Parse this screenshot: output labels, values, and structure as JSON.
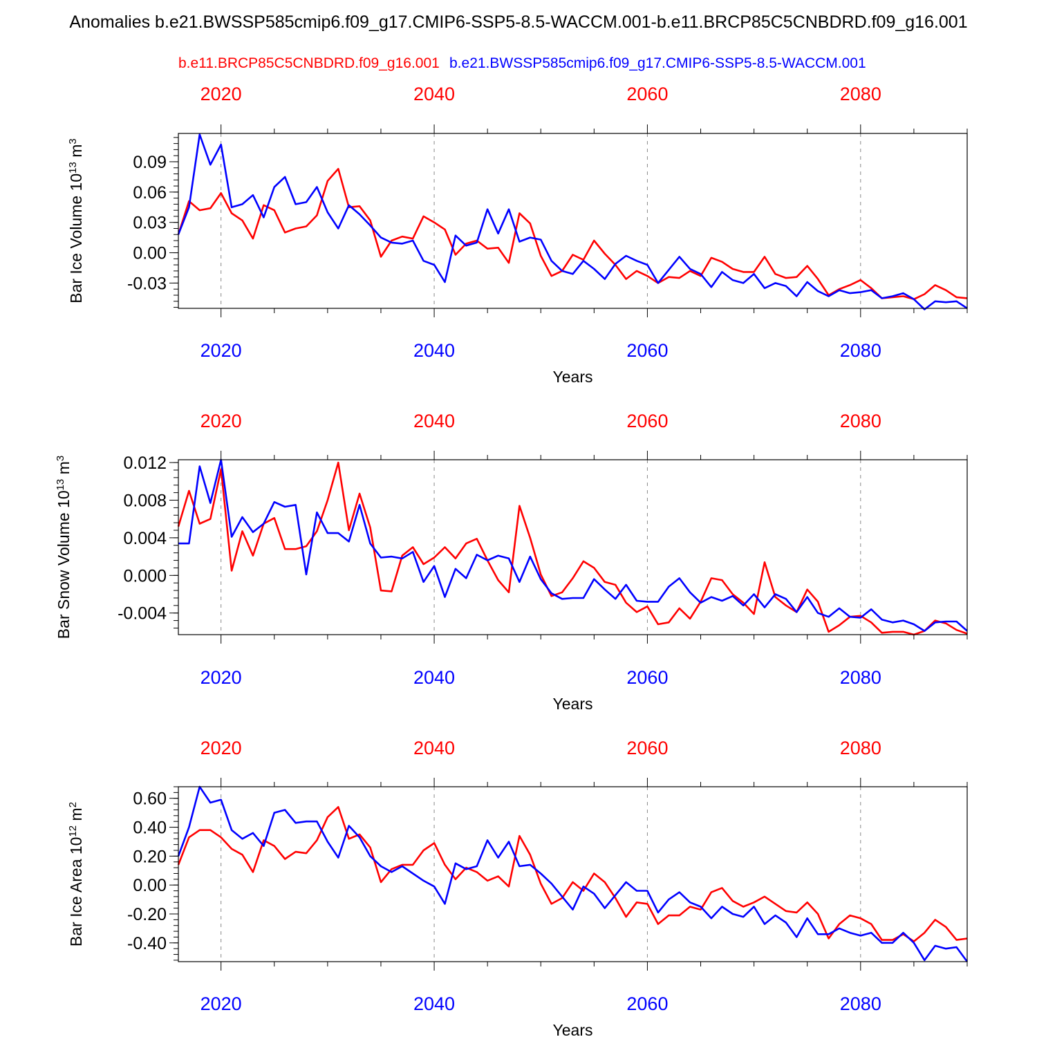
{
  "title": "Anomalies b.e21.BWSSP585cmip6.f09_g17.CMIP6-SSP5-8.5-WACCM.001-b.e11.BRCP85C5CNBDRD.f09_g16.001",
  "legend": {
    "red_label": "b.e11.BRCP85C5CNBDRD.f09_g16.001",
    "blue_label": "b.e21.BWSSP585cmip6.f09_g17.CMIP6-SSP5-8.5-WACCM.001"
  },
  "colors": {
    "red": "#ff0000",
    "blue": "#0000ff",
    "axis": "#000000",
    "grid": "#888888"
  },
  "chart_data": [
    {
      "type": "line",
      "ylabel_main": "Bar Ice Volume 10",
      "ylabel_exp": "13",
      "ylabel_unit": " m",
      "ylabel_unit_exp": "3",
      "xlabel": "Years",
      "xlim": [
        2016,
        2090
      ],
      "ylim": [
        -0.055,
        0.118
      ],
      "xticks": [
        2020,
        2040,
        2060,
        2080
      ],
      "xtick_labels": [
        "2020",
        "2040",
        "2060",
        "2080"
      ],
      "yticks": [
        0.09,
        0.06,
        0.03,
        0.0,
        -0.03
      ],
      "ytick_labels": [
        "0.09",
        "0.06",
        "0.03",
        "0.00",
        "-0.03"
      ],
      "yminor": 0.006,
      "grid": "vertical dashed at major x ticks",
      "series": [
        {
          "name": "b.e11.BRCP85C5CNBDRD.f09_g16.001",
          "color": "red",
          "start": 2016,
          "values": [
            0.018,
            0.051,
            0.042,
            0.044,
            0.059,
            0.039,
            0.032,
            0.014,
            0.047,
            0.042,
            0.02,
            0.024,
            0.026,
            0.037,
            0.071,
            0.083,
            0.045,
            0.046,
            0.032,
            -0.004,
            0.012,
            0.016,
            0.014,
            0.036,
            0.03,
            0.023,
            -0.002,
            0.009,
            0.012,
            0.004,
            0.005,
            -0.01,
            0.039,
            0.029,
            -0.003,
            -0.023,
            -0.018,
            -0.002,
            -0.007,
            0.012,
            -0.001,
            -0.012,
            -0.026,
            -0.018,
            -0.023,
            -0.03,
            -0.024,
            -0.025,
            -0.018,
            -0.023,
            -0.005,
            -0.009,
            -0.016,
            -0.019,
            -0.019,
            -0.004,
            -0.021,
            -0.025,
            -0.024,
            -0.013,
            -0.026,
            -0.042,
            -0.036,
            -0.032,
            -0.027,
            -0.035,
            -0.045,
            -0.044,
            -0.043,
            -0.046,
            -0.041,
            -0.032,
            -0.037,
            -0.044,
            -0.045
          ]
        },
        {
          "name": "b.e21.BWSSP585cmip6.f09_g17.CMIP6-SSP5-8.5-WACCM.001",
          "color": "blue",
          "start": 2016,
          "values": [
            0.018,
            0.045,
            0.117,
            0.087,
            0.107,
            0.045,
            0.048,
            0.057,
            0.035,
            0.065,
            0.075,
            0.048,
            0.05,
            0.065,
            0.04,
            0.024,
            0.047,
            0.038,
            0.027,
            0.015,
            0.01,
            0.009,
            0.012,
            -0.008,
            -0.012,
            -0.029,
            0.017,
            0.007,
            0.01,
            0.043,
            0.019,
            0.043,
            0.011,
            0.015,
            0.013,
            -0.008,
            -0.018,
            -0.021,
            -0.008,
            -0.016,
            -0.026,
            -0.011,
            -0.003,
            -0.008,
            -0.012,
            -0.03,
            -0.017,
            -0.004,
            -0.016,
            -0.021,
            -0.034,
            -0.019,
            -0.027,
            -0.03,
            -0.021,
            -0.035,
            -0.03,
            -0.033,
            -0.043,
            -0.029,
            -0.038,
            -0.043,
            -0.037,
            -0.04,
            -0.039,
            -0.037,
            -0.045,
            -0.043,
            -0.04,
            -0.046,
            -0.056,
            -0.048,
            -0.049,
            -0.048,
            -0.055
          ]
        }
      ]
    },
    {
      "type": "line",
      "ylabel_main": "Bar Snow Volume 10",
      "ylabel_exp": "13",
      "ylabel_unit": " m",
      "ylabel_unit_exp": "3",
      "xlabel": "Years",
      "xlim": [
        2016,
        2090
      ],
      "ylim": [
        -0.0063,
        0.0123
      ],
      "xticks": [
        2020,
        2040,
        2060,
        2080
      ],
      "xtick_labels": [
        "2020",
        "2040",
        "2060",
        "2080"
      ],
      "yticks": [
        0.012,
        0.008,
        0.004,
        0.0,
        -0.004
      ],
      "ytick_labels": [
        "0.012",
        "0.008",
        "0.004",
        "0.000",
        "-0.004"
      ],
      "yminor": 0.0008,
      "grid": "vertical dashed at major x ticks",
      "series": [
        {
          "name": "b.e11.BRCP85C5CNBDRD.f09_g16.001",
          "color": "red",
          "start": 2016,
          "values": [
            0.0052,
            0.009,
            0.0055,
            0.006,
            0.0113,
            0.0005,
            0.0047,
            0.0021,
            0.0055,
            0.0061,
            0.0028,
            0.0028,
            0.0031,
            0.0047,
            0.008,
            0.012,
            0.0048,
            0.0087,
            0.0051,
            -0.0016,
            -0.0017,
            0.0021,
            0.003,
            0.0012,
            0.0019,
            0.003,
            0.0018,
            0.0034,
            0.0039,
            0.0016,
            -0.0005,
            -0.0018,
            0.0074,
            0.004,
            0.0001,
            -0.0022,
            -0.0018,
            -0.0003,
            0.0015,
            0.0008,
            -0.0007,
            -0.001,
            -0.0029,
            -0.0039,
            -0.0033,
            -0.0052,
            -0.005,
            -0.0035,
            -0.0046,
            -0.0028,
            -0.0003,
            -0.0005,
            -0.002,
            -0.0029,
            -0.0041,
            0.0014,
            -0.0023,
            -0.0032,
            -0.0039,
            -0.0015,
            -0.0028,
            -0.006,
            -0.0053,
            -0.0044,
            -0.0043,
            -0.005,
            -0.0061,
            -0.006,
            -0.006,
            -0.0063,
            -0.0059,
            -0.0048,
            -0.0051,
            -0.0058,
            -0.0062
          ]
        },
        {
          "name": "b.e21.BWSSP585cmip6.f09_g17.CMIP6-SSP5-8.5-WACCM.001",
          "color": "blue",
          "start": 2016,
          "values": [
            0.0034,
            0.0034,
            0.0116,
            0.0077,
            0.0123,
            0.0041,
            0.0062,
            0.0046,
            0.0055,
            0.0078,
            0.0073,
            0.0075,
            0.0001,
            0.0067,
            0.0045,
            0.0045,
            0.0036,
            0.0075,
            0.0034,
            0.0019,
            0.002,
            0.0018,
            0.0025,
            -0.0007,
            0.001,
            -0.0023,
            0.0007,
            -0.0003,
            0.0022,
            0.0016,
            0.0021,
            0.0018,
            -0.0007,
            0.002,
            -0.0004,
            -0.0019,
            -0.0025,
            -0.0024,
            -0.0024,
            -0.0004,
            -0.0015,
            -0.0025,
            -0.001,
            -0.0027,
            -0.0028,
            -0.0028,
            -0.0012,
            -0.0003,
            -0.0018,
            -0.0029,
            -0.0023,
            -0.0027,
            -0.0022,
            -0.0032,
            -0.002,
            -0.0034,
            -0.002,
            -0.0025,
            -0.0039,
            -0.0023,
            -0.004,
            -0.0044,
            -0.0035,
            -0.0044,
            -0.0045,
            -0.0036,
            -0.0047,
            -0.005,
            -0.0048,
            -0.0052,
            -0.0059,
            -0.005,
            -0.0049,
            -0.0049,
            -0.0059
          ]
        }
      ]
    },
    {
      "type": "line",
      "ylabel_main": "Bar Ice Area 10",
      "ylabel_exp": "12",
      "ylabel_unit": " m",
      "ylabel_unit_exp": "2",
      "xlabel": "Years",
      "xlim": [
        2016,
        2090
      ],
      "ylim": [
        -0.53,
        0.68
      ],
      "xticks": [
        2020,
        2040,
        2060,
        2080
      ],
      "xtick_labels": [
        "2020",
        "2040",
        "2060",
        "2080"
      ],
      "yticks": [
        0.6,
        0.4,
        0.2,
        0.0,
        -0.2,
        -0.4
      ],
      "ytick_labels": [
        "0.60",
        "0.40",
        "0.20",
        "0.00",
        "-0.20",
        "-0.40"
      ],
      "yminor": 0.04,
      "grid": "vertical dashed at major x ticks",
      "series": [
        {
          "name": "b.e11.BRCP85C5CNBDRD.f09_g16.001",
          "color": "red",
          "start": 2016,
          "values": [
            0.14,
            0.33,
            0.38,
            0.38,
            0.33,
            0.25,
            0.21,
            0.09,
            0.31,
            0.27,
            0.18,
            0.23,
            0.22,
            0.31,
            0.47,
            0.54,
            0.32,
            0.35,
            0.26,
            0.02,
            0.11,
            0.14,
            0.14,
            0.24,
            0.29,
            0.14,
            0.04,
            0.12,
            0.09,
            0.03,
            0.06,
            -0.01,
            0.34,
            0.21,
            0.01,
            -0.13,
            -0.09,
            0.02,
            -0.04,
            0.08,
            0.02,
            -0.09,
            -0.22,
            -0.12,
            -0.13,
            -0.27,
            -0.21,
            -0.21,
            -0.15,
            -0.17,
            -0.05,
            -0.02,
            -0.11,
            -0.15,
            -0.12,
            -0.08,
            -0.13,
            -0.18,
            -0.19,
            -0.12,
            -0.2,
            -0.37,
            -0.27,
            -0.21,
            -0.23,
            -0.27,
            -0.38,
            -0.38,
            -0.34,
            -0.39,
            -0.33,
            -0.24,
            -0.29,
            -0.38,
            -0.37
          ]
        },
        {
          "name": "b.e21.BWSSP585cmip6.f09_g17.CMIP6-SSP5-8.5-WACCM.001",
          "color": "blue",
          "start": 2016,
          "values": [
            0.2,
            0.4,
            0.68,
            0.57,
            0.59,
            0.38,
            0.32,
            0.36,
            0.27,
            0.5,
            0.52,
            0.43,
            0.44,
            0.44,
            0.3,
            0.19,
            0.41,
            0.33,
            0.2,
            0.13,
            0.09,
            0.13,
            0.08,
            0.03,
            -0.01,
            -0.13,
            0.15,
            0.11,
            0.13,
            0.31,
            0.19,
            0.3,
            0.13,
            0.14,
            0.08,
            0.01,
            -0.08,
            -0.17,
            -0.01,
            -0.06,
            -0.16,
            -0.07,
            0.02,
            -0.04,
            -0.04,
            -0.19,
            -0.1,
            -0.05,
            -0.12,
            -0.15,
            -0.23,
            -0.15,
            -0.2,
            -0.22,
            -0.15,
            -0.27,
            -0.21,
            -0.26,
            -0.36,
            -0.23,
            -0.34,
            -0.34,
            -0.3,
            -0.33,
            -0.35,
            -0.33,
            -0.4,
            -0.4,
            -0.33,
            -0.4,
            -0.52,
            -0.42,
            -0.44,
            -0.43,
            -0.53
          ]
        }
      ]
    }
  ]
}
